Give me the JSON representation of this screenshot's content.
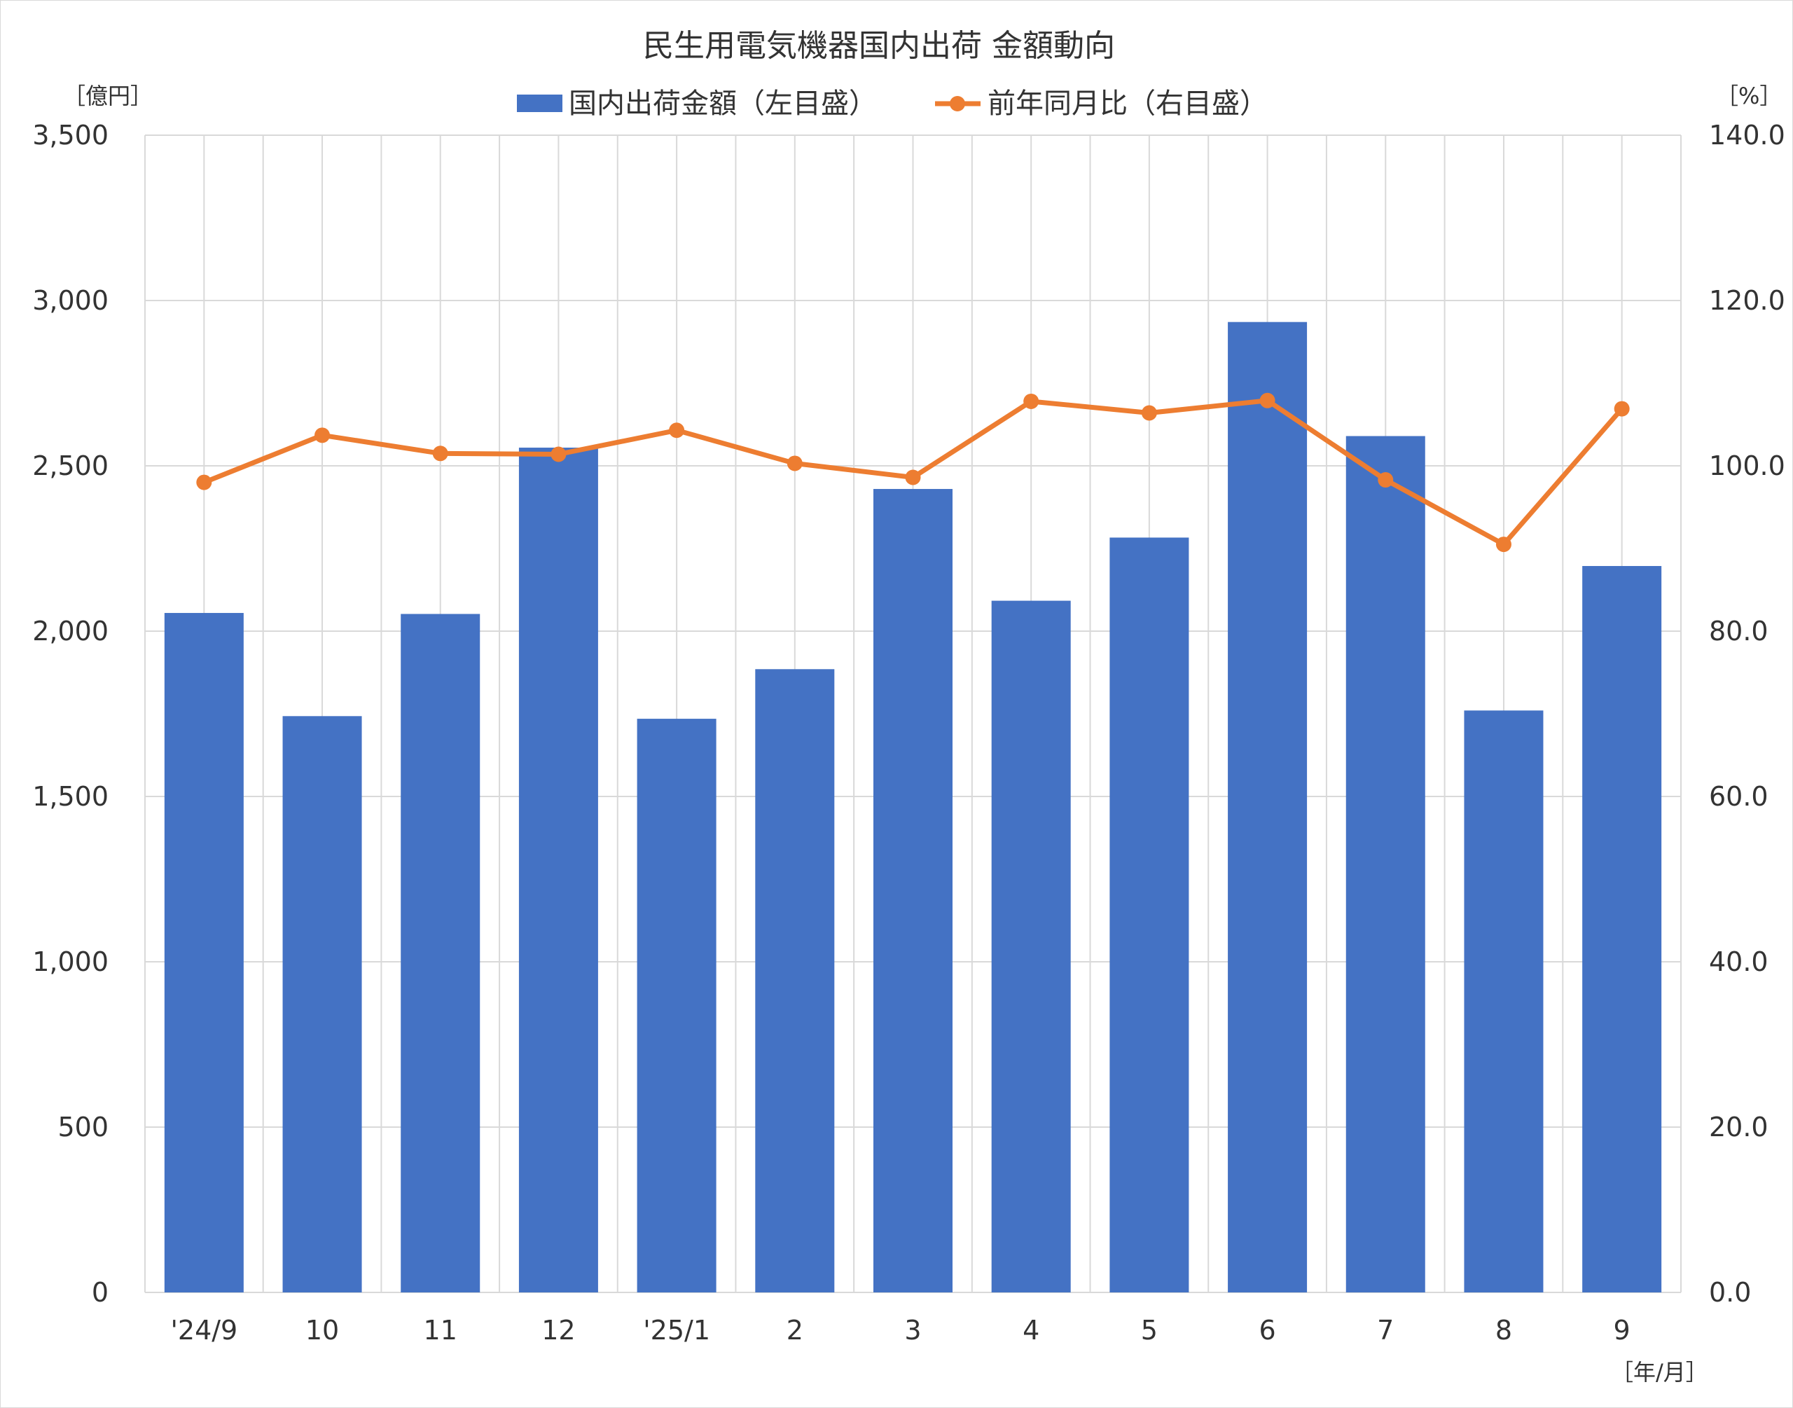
{
  "chart_data": {
    "type": "bar",
    "title": "民生用電気機器国内出荷 金額動向",
    "categories": [
      "'24/9",
      "10",
      "11",
      "12",
      "'25/1",
      "2",
      "3",
      "4",
      "5",
      "6",
      "7",
      "8",
      "9"
    ],
    "series": [
      {
        "name": "国内出荷金額（左目盛）",
        "type": "bar",
        "axis": "left",
        "color": "#4472C4",
        "values": [
          2055,
          1743,
          2052,
          2555,
          1735,
          1885,
          2430,
          2092,
          2283,
          2935,
          2590,
          1760,
          2197
        ]
      },
      {
        "name": "前年同月比（右目盛）",
        "type": "line",
        "axis": "right",
        "color": "#ED7D31",
        "values": [
          98.0,
          103.7,
          101.5,
          101.4,
          104.3,
          100.3,
          98.6,
          107.8,
          106.4,
          107.9,
          98.3,
          90.5,
          106.9
        ]
      }
    ],
    "left_axis": {
      "unit": "［億円］",
      "min": 0,
      "max": 3500,
      "ticks": [
        "0",
        "500",
        "1,000",
        "1,500",
        "2,000",
        "2,500",
        "3,000",
        "3,500"
      ]
    },
    "right_axis": {
      "unit": "［%］",
      "min": 0,
      "max": 140,
      "ticks": [
        "0.0",
        "20.0",
        "40.0",
        "60.0",
        "80.0",
        "100.0",
        "120.0",
        "140.0"
      ]
    },
    "x_unit": "［年/月］",
    "grid": true,
    "legend_position": "top"
  }
}
